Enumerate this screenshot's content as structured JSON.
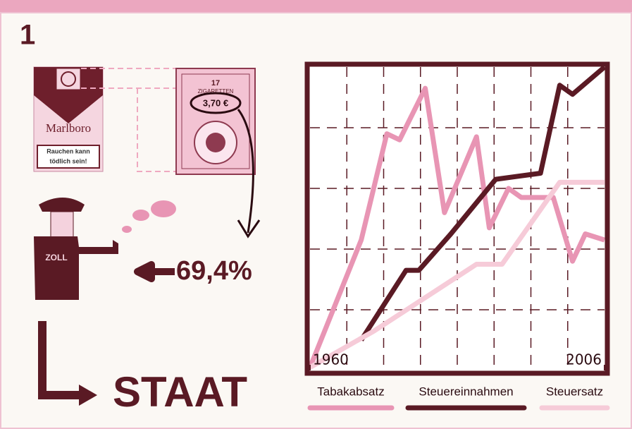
{
  "number": "1",
  "pack": {
    "brand": "Marlboro",
    "warning": [
      "Rauchen kann",
      "tödlich sein!"
    ]
  },
  "stamp": {
    "count": "17",
    "label": "ZIGARETTEN",
    "price": "3,70 €"
  },
  "officer_label": "ZOLL",
  "share": "69,4%",
  "recipient": "STAAT",
  "chart_data": {
    "type": "line",
    "xlim": [
      1960,
      2006
    ],
    "xticks": [
      1960,
      2006
    ],
    "ylim": [
      0,
      100
    ],
    "grid": true,
    "series": [
      {
        "name": "Tabakabsatz",
        "color": "#e895b4",
        "x": [
          1960,
          1968,
          1972,
          1974,
          1978,
          1981,
          1986,
          1988,
          1991,
          1993,
          1998,
          2001,
          2003,
          2006
        ],
        "values": [
          1,
          43,
          78,
          76,
          93,
          52,
          77,
          47,
          60,
          57,
          57,
          36,
          45,
          43
        ]
      },
      {
        "name": "Steuereinnahmen",
        "color": "#5a1a24",
        "x": [
          1968,
          1975,
          1977,
          1982,
          1989,
          1996,
          1999,
          2001,
          2006
        ],
        "values": [
          10,
          33,
          33,
          45,
          63,
          65,
          94,
          91,
          100
        ]
      },
      {
        "name": "Steuersatz",
        "color": "#f6cbd8",
        "x": [
          1960,
          1970,
          1986,
          1990,
          1999,
          2006
        ],
        "values": [
          1,
          13,
          35,
          35,
          62,
          62
        ]
      }
    ]
  }
}
